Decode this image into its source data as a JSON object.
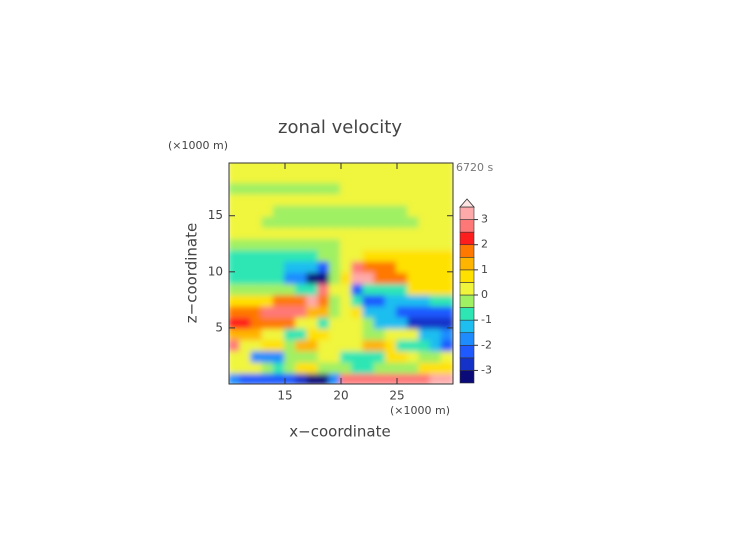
{
  "chart_data": {
    "type": "contour",
    "title": "zonal velocity",
    "xlabel": "x−coordinate",
    "ylabel": "z−coordinate",
    "x_unit": "(×1000 m)",
    "y_unit": "(×1000 m)",
    "time_label": "6720 s",
    "xlim": [
      10,
      30
    ],
    "ylim": [
      0,
      19.7
    ],
    "xticks": [
      15,
      20,
      25
    ],
    "yticks": [
      5,
      10,
      15
    ],
    "x": [
      10.5,
      11.5,
      12.5,
      13.5,
      14.5,
      15.5,
      16.5,
      17.5,
      18.5,
      19.5,
      20.5,
      21.5,
      22.5,
      23.5,
      24.5,
      25.5,
      26.5,
      27.5,
      28.5,
      29.5
    ],
    "y": [
      0.5,
      1.5,
      2.5,
      3.5,
      4.5,
      5.5,
      6.5,
      7.5,
      8.5,
      9.5,
      10.5,
      11.5,
      12.5,
      13.5,
      14.5,
      15.5,
      16.5,
      17.5,
      18.5,
      19.5
    ],
    "values": [
      [
        -1.8,
        -2.5,
        -2.5,
        -2.5,
        -2.5,
        -2.5,
        -2.8,
        -3.3,
        -3.3,
        -2,
        2.5,
        2.5,
        2.5,
        2.5,
        2.5,
        2.5,
        2.5,
        2.8,
        3.2,
        3.2
      ],
      [
        0.4,
        0.4,
        0.3,
        -0.5,
        -0.6,
        -0.4,
        0.7,
        0.6,
        -0.2,
        -0.2,
        -0.2,
        -1,
        -1,
        -0.3,
        -0.3,
        -0.3,
        -0.2,
        0.5,
        0.5,
        0.5
      ],
      [
        0.4,
        0.3,
        -1.7,
        -1.8,
        -1.6,
        -0.5,
        -0.5,
        -0.4,
        0.2,
        0.2,
        -0.8,
        -0.8,
        -0.8,
        -0.6,
        0.5,
        0.5,
        0.3,
        -0.3,
        -0.3,
        0.3
      ],
      [
        2.7,
        0.3,
        0.3,
        0.8,
        0.8,
        -0.3,
        1.2,
        1.2,
        0.2,
        0,
        0,
        0.2,
        1,
        1,
        0.8,
        -0.6,
        -0.6,
        -0.6,
        -1.5,
        -2.5
      ],
      [
        1.2,
        1.2,
        1.2,
        0.3,
        0.3,
        -0.6,
        -0.6,
        0.6,
        0.6,
        0.1,
        0.1,
        0.2,
        -0.5,
        -0.5,
        0.3,
        0.3,
        0.3,
        -1.2,
        -1.2,
        -2
      ],
      [
        2.2,
        2.2,
        1.7,
        1.7,
        1.7,
        1.7,
        0.3,
        0.3,
        -0.7,
        0.2,
        0.2,
        0.2,
        -0.3,
        -1.3,
        -1.3,
        -1.3,
        -2.6,
        -2.6,
        -2.6,
        -2.6
      ],
      [
        1.5,
        1.5,
        1.5,
        2.5,
        2.5,
        2.5,
        2.5,
        1,
        1,
        -0.5,
        0.2,
        0.5,
        -1.5,
        -1.5,
        -1.5,
        -2.5,
        -2.5,
        -2.5,
        -2.5,
        -2.5
      ],
      [
        0.5,
        0.5,
        0.5,
        0.5,
        1.5,
        1.5,
        1.5,
        3,
        1.5,
        -0.3,
        0.2,
        -1,
        -2.5,
        -2.5,
        -1.5,
        -1.5,
        -1.5,
        -1.5,
        -0.8,
        -0.8
      ],
      [
        -0.3,
        -0.3,
        -0.3,
        -0.3,
        -0.3,
        -0.3,
        -0.8,
        -0.8,
        2.5,
        0.3,
        0.2,
        -2.5,
        -1,
        -1,
        -1,
        -1,
        0.5,
        0.5,
        0.5,
        0.5
      ],
      [
        -0.7,
        -0.7,
        -0.7,
        -0.7,
        -0.7,
        -2,
        -2,
        -3.2,
        -3.2,
        -0.5,
        0.5,
        3.2,
        3.2,
        1.8,
        1.8,
        1.8,
        0.7,
        0.7,
        0.7,
        0.7
      ],
      [
        -0.8,
        -0.8,
        -0.8,
        -0.8,
        -0.8,
        -1.5,
        -1.5,
        -1.5,
        -2.5,
        -0.3,
        0.3,
        2.8,
        1.5,
        1.5,
        1.5,
        0.8,
        0.8,
        0.8,
        0.8,
        0.8
      ],
      [
        -0.6,
        -0.6,
        -0.6,
        -0.6,
        -0.6,
        -0.6,
        -0.6,
        -0.6,
        -0.3,
        -0.2,
        0.2,
        0.3,
        0.6,
        0.6,
        0.6,
        0.6,
        0.6,
        0.6,
        0.6,
        0.6
      ],
      [
        -0.3,
        -0.3,
        -0.3,
        -0.3,
        -0.3,
        -0.3,
        -0.3,
        -0.3,
        -0.3,
        -0.3,
        0.3,
        0.3,
        0.3,
        0.3,
        0.3,
        0.3,
        0.3,
        0.3,
        0.3,
        0.3
      ],
      [
        0.2,
        0.2,
        0.2,
        0.2,
        0.2,
        0.2,
        0.2,
        0.2,
        0.2,
        0.2,
        0.2,
        0.2,
        0.2,
        0.2,
        0.2,
        0.2,
        0.2,
        0.2,
        0.2,
        0.2
      ],
      [
        0.2,
        0.2,
        0.2,
        -0.2,
        -0.2,
        -0.2,
        -0.2,
        -0.2,
        -0.2,
        -0.2,
        -0.2,
        -0.2,
        -0.2,
        -0.2,
        -0.2,
        -0.2,
        -0.2,
        0.2,
        0.2,
        0.2
      ],
      [
        0.2,
        0.2,
        0.2,
        0.2,
        -0.2,
        -0.2,
        -0.2,
        -0.2,
        -0.2,
        -0.2,
        -0.2,
        -0.2,
        -0.2,
        -0.2,
        -0.2,
        -0.2,
        0.2,
        0.2,
        0.2,
        0.2
      ],
      [
        0.2,
        0.2,
        0.2,
        0.2,
        0.2,
        0.2,
        0.2,
        0.2,
        0.2,
        0.2,
        0.2,
        0.2,
        0.2,
        0.2,
        0.2,
        0.2,
        0.2,
        0.2,
        0.2,
        0.2
      ],
      [
        -0.2,
        -0.2,
        -0.2,
        -0.2,
        -0.2,
        -0.2,
        -0.2,
        -0.2,
        -0.2,
        -0.2,
        0.2,
        0.2,
        0.2,
        0.2,
        0.2,
        0.2,
        0.2,
        0.2,
        0.2,
        0.2
      ],
      [
        0.2,
        0.2,
        0.2,
        0.2,
        0.2,
        0.2,
        0.2,
        0.2,
        0.2,
        0.2,
        0.2,
        0.2,
        0.2,
        0.2,
        0.2,
        0.2,
        0.2,
        0.2,
        0.2,
        0.2
      ],
      [
        0.2,
        0.2,
        0.2,
        0.2,
        0.2,
        0.2,
        0.2,
        0.2,
        0.2,
        0.2,
        0.2,
        0.2,
        0.2,
        0.2,
        0.2,
        0.2,
        0.2,
        0.2,
        0.2,
        0.2
      ]
    ],
    "levels": [
      -3.5,
      -3,
      -2.5,
      -2,
      -1.5,
      -1,
      -0.5,
      0,
      0.5,
      1,
      1.5,
      2,
      2.5,
      3,
      3.5
    ],
    "colors": [
      "#0a0a78",
      "#1432c8",
      "#1e5aff",
      "#1e8cff",
      "#1ebef0",
      "#2ee6b4",
      "#a0f064",
      "#f0f53c",
      "#ffe100",
      "#ffb400",
      "#ff7800",
      "#ff1e1e",
      "#ff7878",
      "#ffaaaa"
    ],
    "over_color": "#ffe4e4",
    "colorbar_ticks": [
      -3,
      -2,
      -1,
      0,
      1,
      2,
      3
    ]
  }
}
